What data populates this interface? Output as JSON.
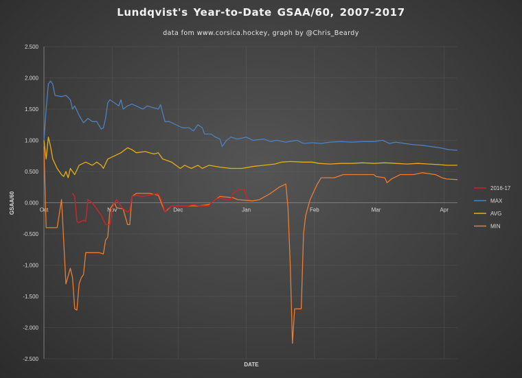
{
  "chart_data": {
    "type": "line",
    "title": "Lundqvist's  Year-to-Date  GSAA/60, 2007-2017",
    "subtitle": "data fom www.corsica.hockey, graph by @Chris_Beardy",
    "xlabel": "DATE",
    "ylabel": "GSAA/60",
    "ylim": [
      -2.5,
      2.5
    ],
    "y_ticks": [
      2.5,
      2.0,
      1.5,
      1.0,
      0.5,
      0.0,
      -0.5,
      -1.0,
      -1.5,
      -2.0,
      -2.5
    ],
    "y_tick_labels": [
      "2.500",
      "2.000",
      "1.500",
      "1.000",
      "0.500",
      "0.000",
      "-0.500",
      "-1.000",
      "-1.500",
      "-2.000",
      "-2.500"
    ],
    "x_unit": "days since Oct 1",
    "xlim": [
      0,
      188
    ],
    "x_ticks": [
      0,
      31,
      61,
      92,
      123,
      151,
      182
    ],
    "x_tick_labels": [
      "Oct",
      "Nov",
      "Dec",
      "Jan",
      "Feb",
      "Mar",
      "Apr"
    ],
    "grid": true,
    "legend_position": "right",
    "series": [
      {
        "name": "MIN",
        "color": "#ed7d31",
        "points": [
          [
            0,
            0.9
          ],
          [
            1,
            -0.4
          ],
          [
            3,
            -0.4
          ],
          [
            6,
            -0.4
          ],
          [
            8,
            0.05
          ],
          [
            10,
            -1.3
          ],
          [
            12,
            -1.05
          ],
          [
            13,
            -1.2
          ],
          [
            14,
            -1.7
          ],
          [
            15,
            -1.72
          ],
          [
            16,
            -1.3
          ],
          [
            17,
            -1.2
          ],
          [
            18,
            -1.15
          ],
          [
            19,
            -0.8
          ],
          [
            21,
            -0.8
          ],
          [
            25,
            -0.8
          ],
          [
            27,
            -0.82
          ],
          [
            28,
            -0.6
          ],
          [
            29,
            -0.55
          ],
          [
            30,
            -0.1
          ],
          [
            32,
            0.0
          ],
          [
            33,
            -0.08
          ],
          [
            36,
            -0.1
          ],
          [
            38,
            -0.35
          ],
          [
            39,
            -0.35
          ],
          [
            40,
            0.1
          ],
          [
            42,
            0.15
          ],
          [
            48,
            0.15
          ],
          [
            52,
            0.12
          ],
          [
            55,
            -0.15
          ],
          [
            58,
            -0.05
          ],
          [
            65,
            -0.05
          ],
          [
            70,
            -0.05
          ],
          [
            75,
            -0.03
          ],
          [
            78,
            0.05
          ],
          [
            80,
            0.1
          ],
          [
            86,
            0.08
          ],
          [
            88,
            0.05
          ],
          [
            95,
            0.03
          ],
          [
            98,
            0.05
          ],
          [
            103,
            0.15
          ],
          [
            107,
            0.25
          ],
          [
            110,
            0.3
          ],
          [
            111,
            -0.1
          ],
          [
            112,
            -1.0
          ],
          [
            113,
            -2.25
          ],
          [
            114,
            -1.7
          ],
          [
            115,
            -1.7
          ],
          [
            117,
            -1.7
          ],
          [
            118,
            -0.5
          ],
          [
            119,
            -0.2
          ],
          [
            121,
            0.05
          ],
          [
            124,
            0.28
          ],
          [
            126,
            0.4
          ],
          [
            132,
            0.4
          ],
          [
            136,
            0.45
          ],
          [
            140,
            0.45
          ],
          [
            145,
            0.45
          ],
          [
            150,
            0.45
          ],
          [
            151,
            0.42
          ],
          [
            155,
            0.4
          ],
          [
            156,
            0.32
          ],
          [
            158,
            0.38
          ],
          [
            162,
            0.45
          ],
          [
            168,
            0.45
          ],
          [
            172,
            0.48
          ],
          [
            178,
            0.45
          ],
          [
            181,
            0.4
          ],
          [
            183,
            0.38
          ],
          [
            188,
            0.37
          ]
        ]
      },
      {
        "name": "AVG",
        "color": "#e6b012",
        "points": [
          [
            0,
            1.0
          ],
          [
            1,
            0.7
          ],
          [
            2,
            1.05
          ],
          [
            3,
            0.9
          ],
          [
            4,
            0.7
          ],
          [
            6,
            0.55
          ],
          [
            8,
            0.45
          ],
          [
            9,
            0.42
          ],
          [
            10,
            0.5
          ],
          [
            11,
            0.4
          ],
          [
            12,
            0.55
          ],
          [
            14,
            0.45
          ],
          [
            16,
            0.6
          ],
          [
            19,
            0.65
          ],
          [
            22,
            0.6
          ],
          [
            24,
            0.65
          ],
          [
            26,
            0.6
          ],
          [
            27,
            0.55
          ],
          [
            29,
            0.7
          ],
          [
            32,
            0.75
          ],
          [
            35,
            0.8
          ],
          [
            38,
            0.88
          ],
          [
            40,
            0.85
          ],
          [
            42,
            0.8
          ],
          [
            46,
            0.82
          ],
          [
            50,
            0.78
          ],
          [
            52,
            0.8
          ],
          [
            54,
            0.7
          ],
          [
            58,
            0.65
          ],
          [
            60,
            0.6
          ],
          [
            62,
            0.55
          ],
          [
            64,
            0.6
          ],
          [
            67,
            0.55
          ],
          [
            70,
            0.6
          ],
          [
            72,
            0.55
          ],
          [
            75,
            0.6
          ],
          [
            80,
            0.57
          ],
          [
            85,
            0.55
          ],
          [
            90,
            0.55
          ],
          [
            95,
            0.58
          ],
          [
            100,
            0.6
          ],
          [
            105,
            0.62
          ],
          [
            108,
            0.65
          ],
          [
            112,
            0.66
          ],
          [
            118,
            0.65
          ],
          [
            122,
            0.65
          ],
          [
            125,
            0.63
          ],
          [
            130,
            0.62
          ],
          [
            135,
            0.63
          ],
          [
            140,
            0.63
          ],
          [
            145,
            0.64
          ],
          [
            150,
            0.63
          ],
          [
            155,
            0.64
          ],
          [
            160,
            0.63
          ],
          [
            165,
            0.62
          ],
          [
            170,
            0.63
          ],
          [
            175,
            0.62
          ],
          [
            180,
            0.61
          ],
          [
            183,
            0.6
          ],
          [
            188,
            0.6
          ]
        ]
      },
      {
        "name": "MAX",
        "color": "#4f81bd",
        "points": [
          [
            0,
            1.0
          ],
          [
            1,
            1.5
          ],
          [
            2,
            1.9
          ],
          [
            3,
            1.95
          ],
          [
            4,
            1.9
          ],
          [
            5,
            1.72
          ],
          [
            8,
            1.7
          ],
          [
            10,
            1.72
          ],
          [
            12,
            1.65
          ],
          [
            13,
            1.5
          ],
          [
            14,
            1.55
          ],
          [
            16,
            1.4
          ],
          [
            18,
            1.28
          ],
          [
            20,
            1.35
          ],
          [
            22,
            1.3
          ],
          [
            24,
            1.3
          ],
          [
            26,
            1.18
          ],
          [
            27,
            1.2
          ],
          [
            28,
            1.35
          ],
          [
            29,
            1.6
          ],
          [
            30,
            1.65
          ],
          [
            32,
            1.6
          ],
          [
            34,
            1.55
          ],
          [
            35,
            1.65
          ],
          [
            36,
            1.5
          ],
          [
            38,
            1.55
          ],
          [
            40,
            1.58
          ],
          [
            45,
            1.5
          ],
          [
            47,
            1.55
          ],
          [
            50,
            1.52
          ],
          [
            52,
            1.5
          ],
          [
            53,
            1.57
          ],
          [
            55,
            1.3
          ],
          [
            57,
            1.3
          ],
          [
            60,
            1.25
          ],
          [
            63,
            1.2
          ],
          [
            66,
            1.2
          ],
          [
            68,
            1.15
          ],
          [
            70,
            1.25
          ],
          [
            72,
            1.2
          ],
          [
            73,
            1.1
          ],
          [
            76,
            1.1
          ],
          [
            78,
            1.05
          ],
          [
            80,
            1.02
          ],
          [
            81,
            0.9
          ],
          [
            83,
            1.0
          ],
          [
            85,
            1.05
          ],
          [
            88,
            1.02
          ],
          [
            92,
            1.05
          ],
          [
            95,
            1.0
          ],
          [
            100,
            1.02
          ],
          [
            103,
            0.98
          ],
          [
            106,
            1.0
          ],
          [
            110,
            0.97
          ],
          [
            115,
            1.0
          ],
          [
            118,
            0.95
          ],
          [
            122,
            0.96
          ],
          [
            126,
            0.95
          ],
          [
            130,
            0.97
          ],
          [
            135,
            0.98
          ],
          [
            140,
            0.97
          ],
          [
            145,
            0.98
          ],
          [
            150,
            0.98
          ],
          [
            154,
            1.0
          ],
          [
            157,
            0.95
          ],
          [
            160,
            0.97
          ],
          [
            164,
            0.95
          ],
          [
            168,
            0.93
          ],
          [
            172,
            0.92
          ],
          [
            176,
            0.9
          ],
          [
            180,
            0.88
          ],
          [
            184,
            0.85
          ],
          [
            188,
            0.84
          ]
        ]
      },
      {
        "name": "2016-17",
        "color": "#c0282a",
        "points": [
          [
            13,
            0.15
          ],
          [
            14,
            0.1
          ],
          [
            15,
            -0.3
          ],
          [
            16,
            -0.32
          ],
          [
            18,
            -0.28
          ],
          [
            19,
            -0.3
          ],
          [
            20,
            0.05
          ],
          [
            22,
            0.0
          ],
          [
            24,
            -0.1
          ],
          [
            26,
            -0.2
          ],
          [
            28,
            -0.35
          ],
          [
            30,
            -0.35
          ],
          [
            31,
            -0.1
          ],
          [
            32,
            0.0
          ],
          [
            33,
            0.05
          ],
          [
            34,
            0.0
          ],
          [
            36,
            -0.1
          ],
          [
            38,
            -0.15
          ],
          [
            39,
            -0.12
          ],
          [
            40,
            0.1
          ],
          [
            42,
            0.12
          ],
          [
            44,
            0.1
          ],
          [
            48,
            0.12
          ],
          [
            52,
            0.15
          ],
          [
            54,
            0.0
          ],
          [
            55,
            -0.15
          ],
          [
            56,
            -0.1
          ],
          [
            58,
            -0.05
          ],
          [
            62,
            -0.05
          ],
          [
            65,
            -0.05
          ],
          [
            68,
            -0.03
          ],
          [
            71,
            -0.05
          ],
          [
            75,
            -0.05
          ],
          [
            76,
            0.0
          ],
          [
            78,
            0.05
          ],
          [
            80,
            0.08
          ],
          [
            82,
            0.05
          ],
          [
            85,
            0.06
          ],
          [
            86,
            0.15
          ],
          [
            88,
            0.2
          ],
          [
            91,
            0.22
          ],
          [
            92,
            0.1
          ],
          [
            93,
            0.05
          ]
        ]
      }
    ],
    "legend": [
      "2016-17",
      "MAX",
      "AVG",
      "MIN"
    ]
  }
}
